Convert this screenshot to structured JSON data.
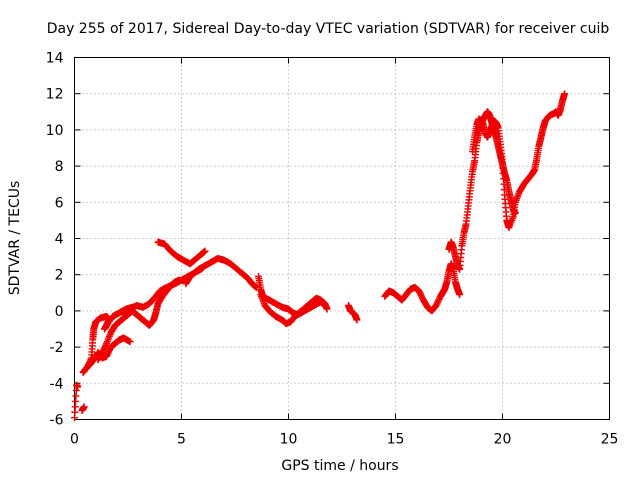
{
  "chart_data": {
    "type": "scatter",
    "title": "Day 255 of 2017, Sidereal Day-to-day VTEC variation (SDTVAR) for receiver cuib",
    "xlabel": "GPS time / hours",
    "ylabel": "SDTVAR / TECUs",
    "xlim": [
      0,
      25
    ],
    "ylim": [
      -6,
      14
    ],
    "xticks": [
      0,
      5,
      10,
      15,
      20,
      25
    ],
    "yticks": [
      -6,
      -4,
      -2,
      0,
      2,
      4,
      6,
      8,
      10,
      12,
      14
    ],
    "grid": true,
    "marker": "plus",
    "color": "#ee0000",
    "series": [
      {
        "name": "SDTVAR",
        "segments": [
          [
            [
              0.0,
              -5.9
            ],
            [
              0.1,
              -4.1
            ],
            [
              0.15,
              -4.2
            ]
          ],
          [
            [
              0.35,
              -5.5
            ],
            [
              0.45,
              -5.3
            ]
          ],
          [
            [
              0.4,
              -3.4
            ],
            [
              0.6,
              -3.1
            ],
            [
              0.8,
              -2.6
            ],
            [
              0.85,
              -1.6
            ],
            [
              0.9,
              -1.0
            ],
            [
              1.0,
              -0.6
            ],
            [
              1.2,
              -0.4
            ],
            [
              1.5,
              -0.3
            ],
            [
              1.6,
              -0.5
            ],
            [
              1.5,
              -0.8
            ],
            [
              1.4,
              -1.0
            ],
            [
              1.6,
              -0.6
            ],
            [
              1.8,
              -0.3
            ],
            [
              2.1,
              -0.1
            ],
            [
              2.4,
              0.1
            ],
            [
              2.7,
              0.2
            ],
            [
              2.5,
              0.0
            ],
            [
              2.3,
              -0.2
            ],
            [
              2.6,
              0.1
            ],
            [
              2.9,
              0.3
            ],
            [
              3.2,
              0.2
            ],
            [
              3.5,
              0.4
            ],
            [
              3.8,
              0.8
            ],
            [
              4.0,
              1.1
            ],
            [
              4.3,
              1.3
            ],
            [
              4.7,
              1.5
            ],
            [
              5.0,
              1.7
            ],
            [
              5.3,
              1.9
            ],
            [
              5.6,
              2.1
            ],
            [
              5.9,
              2.3
            ],
            [
              6.0,
              2.4
            ]
          ],
          [
            [
              0.7,
              -3.0
            ],
            [
              0.9,
              -2.7
            ],
            [
              1.1,
              -2.3
            ],
            [
              1.3,
              -2.6
            ],
            [
              1.5,
              -2.5
            ],
            [
              1.7,
              -2.0
            ],
            [
              1.9,
              -1.8
            ],
            [
              2.1,
              -1.6
            ],
            [
              2.3,
              -1.5
            ],
            [
              2.6,
              -1.7
            ]
          ],
          [
            [
              1.1,
              -2.7
            ],
            [
              1.3,
              -2.3
            ],
            [
              1.5,
              -1.8
            ],
            [
              1.7,
              -1.2
            ],
            [
              1.9,
              -0.8
            ],
            [
              2.1,
              -0.6
            ],
            [
              2.3,
              -0.4
            ],
            [
              2.5,
              -0.2
            ],
            [
              2.7,
              0.0
            ],
            [
              2.9,
              -0.2
            ],
            [
              3.1,
              -0.4
            ],
            [
              3.3,
              -0.6
            ],
            [
              3.5,
              -0.8
            ],
            [
              3.7,
              -0.5
            ],
            [
              3.8,
              -0.1
            ],
            [
              3.9,
              0.4
            ],
            [
              4.1,
              0.8
            ],
            [
              4.3,
              1.1
            ],
            [
              4.5,
              1.4
            ],
            [
              4.7,
              1.6
            ],
            [
              4.9,
              1.7
            ]
          ],
          [
            [
              3.9,
              3.8
            ],
            [
              4.2,
              3.7
            ],
            [
              4.5,
              3.3
            ],
            [
              4.8,
              3.0
            ],
            [
              5.1,
              2.8
            ],
            [
              5.4,
              2.6
            ],
            [
              5.6,
              2.8
            ],
            [
              5.9,
              3.1
            ],
            [
              6.1,
              3.3
            ]
          ],
          [
            [
              5.2,
              1.5
            ],
            [
              5.4,
              1.9
            ],
            [
              5.6,
              2.1
            ],
            [
              5.8,
              2.3
            ],
            [
              6.1,
              2.5
            ],
            [
              6.4,
              2.7
            ],
            [
              6.7,
              2.9
            ],
            [
              7.0,
              2.8
            ],
            [
              7.3,
              2.6
            ],
            [
              7.6,
              2.3
            ],
            [
              7.9,
              2.0
            ],
            [
              8.1,
              1.8
            ],
            [
              8.3,
              1.5
            ],
            [
              8.5,
              1.3
            ]
          ],
          [
            [
              8.6,
              1.9
            ],
            [
              8.7,
              1.2
            ],
            [
              8.8,
              0.8
            ],
            [
              9.1,
              0.6
            ],
            [
              9.4,
              0.4
            ],
            [
              9.7,
              0.2
            ],
            [
              10.0,
              0.1
            ],
            [
              10.2,
              -0.1
            ],
            [
              10.4,
              -0.2
            ],
            [
              10.6,
              0.0
            ],
            [
              10.9,
              0.3
            ],
            [
              11.1,
              0.5
            ],
            [
              11.3,
              0.7
            ],
            [
              11.5,
              0.6
            ],
            [
              11.7,
              0.4
            ],
            [
              11.8,
              0.1
            ]
          ],
          [
            [
              8.7,
              0.9
            ],
            [
              8.9,
              0.3
            ],
            [
              9.1,
              0.0
            ],
            [
              9.4,
              -0.3
            ],
            [
              9.7,
              -0.5
            ],
            [
              9.9,
              -0.7
            ],
            [
              10.1,
              -0.6
            ],
            [
              10.3,
              -0.3
            ],
            [
              10.6,
              -0.1
            ],
            [
              10.9,
              0.1
            ],
            [
              11.2,
              0.3
            ],
            [
              11.5,
              0.5
            ],
            [
              11.7,
              0.3
            ]
          ],
          [
            [
              12.8,
              0.3
            ],
            [
              12.9,
              0.0
            ],
            [
              13.1,
              -0.2
            ],
            [
              13.2,
              -0.5
            ]
          ],
          [
            [
              14.5,
              0.8
            ],
            [
              14.7,
              1.1
            ],
            [
              14.9,
              1.0
            ],
            [
              15.1,
              0.8
            ],
            [
              15.3,
              0.6
            ],
            [
              15.5,
              0.9
            ],
            [
              15.7,
              1.2
            ],
            [
              15.9,
              1.3
            ],
            [
              16.1,
              1.1
            ],
            [
              16.3,
              0.6
            ],
            [
              16.5,
              0.2
            ],
            [
              16.7,
              0.0
            ],
            [
              16.9,
              0.3
            ],
            [
              17.1,
              0.8
            ],
            [
              17.2,
              1.0
            ],
            [
              17.3,
              1.2
            ],
            [
              17.4,
              1.6
            ],
            [
              17.5,
              2.2
            ],
            [
              17.6,
              2.6
            ],
            [
              17.7,
              2.3
            ],
            [
              17.8,
              1.6
            ],
            [
              17.9,
              1.2
            ],
            [
              18.0,
              0.9
            ]
          ],
          [
            [
              17.5,
              3.4
            ],
            [
              17.6,
              3.8
            ],
            [
              17.7,
              3.5
            ],
            [
              17.8,
              3.0
            ],
            [
              17.9,
              2.5
            ],
            [
              18.0,
              2.3
            ],
            [
              18.1,
              3.6
            ],
            [
              18.2,
              4.3
            ],
            [
              18.3,
              4.8
            ],
            [
              18.4,
              5.8
            ],
            [
              18.5,
              6.8
            ],
            [
              18.6,
              7.7
            ],
            [
              18.7,
              8.3
            ],
            [
              18.8,
              9.3
            ],
            [
              18.9,
              9.9
            ],
            [
              19.0,
              10.3
            ],
            [
              19.1,
              10.6
            ],
            [
              19.2,
              10.8
            ],
            [
              19.3,
              11.0
            ],
            [
              19.4,
              10.8
            ],
            [
              19.5,
              10.4
            ],
            [
              19.6,
              10.0
            ],
            [
              19.7,
              9.6
            ],
            [
              19.8,
              9.1
            ],
            [
              19.9,
              8.6
            ],
            [
              20.0,
              8.1
            ],
            [
              20.1,
              7.6
            ],
            [
              20.2,
              7.2
            ],
            [
              20.3,
              6.6
            ],
            [
              20.4,
              6.1
            ],
            [
              20.5,
              5.6
            ],
            [
              20.6,
              5.4
            ]
          ],
          [
            [
              18.6,
              8.8
            ],
            [
              18.7,
              9.6
            ],
            [
              18.8,
              10.3
            ],
            [
              18.9,
              10.6
            ],
            [
              19.0,
              10.5
            ],
            [
              19.1,
              10.3
            ],
            [
              19.2,
              9.8
            ],
            [
              19.3,
              9.6
            ],
            [
              19.4,
              9.9
            ],
            [
              19.5,
              10.2
            ],
            [
              19.6,
              10.5
            ],
            [
              19.7,
              10.4
            ],
            [
              19.8,
              10.1
            ],
            [
              19.9,
              9.2
            ],
            [
              20.0,
              8.2
            ],
            [
              20.1,
              6.4
            ],
            [
              20.2,
              5.0
            ],
            [
              20.3,
              4.6
            ],
            [
              20.5,
              5.2
            ],
            [
              20.6,
              6.0
            ],
            [
              20.8,
              6.6
            ],
            [
              21.0,
              7.0
            ],
            [
              21.2,
              7.3
            ],
            [
              21.4,
              7.6
            ],
            [
              21.5,
              7.8
            ],
            [
              21.6,
              8.4
            ],
            [
              21.7,
              9.1
            ],
            [
              21.8,
              9.6
            ],
            [
              21.9,
              10.1
            ],
            [
              22.0,
              10.5
            ],
            [
              22.2,
              10.8
            ],
            [
              22.4,
              10.9
            ],
            [
              22.5,
              11.0
            ],
            [
              22.6,
              10.8
            ],
            [
              22.7,
              11.1
            ],
            [
              22.8,
              11.6
            ],
            [
              22.9,
              12.0
            ]
          ]
        ]
      }
    ]
  }
}
